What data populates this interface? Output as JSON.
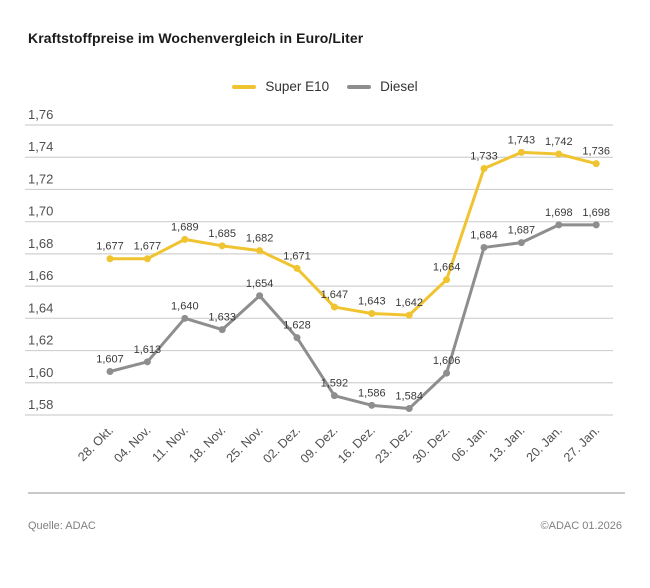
{
  "page": {
    "title": "Kraftstoffpreise im Wochenvergleich in Euro/Liter"
  },
  "chart_data": {
    "type": "line",
    "title": "Kraftstoffpreise im Wochenvergleich in Euro/Liter",
    "unit": "Euro/Liter",
    "categories": [
      "28. Okt.",
      "04. Nov.",
      "11. Nov.",
      "18. Nov.",
      "25. Nov.",
      "02. Dez.",
      "09. Dez.",
      "16. Dez.",
      "23. Dez.",
      "30. Dez.",
      "06. Jan.",
      "13. Jan.",
      "20. Jan.",
      "27. Jan."
    ],
    "series": [
      {
        "name": "Super E10",
        "color": "#F0C430",
        "values": [
          1.677,
          1.677,
          1.689,
          1.685,
          1.682,
          1.671,
          1.647,
          1.643,
          1.642,
          1.664,
          1.733,
          1.743,
          1.742,
          1.736
        ]
      },
      {
        "name": "Diesel",
        "color": "#8E8E8E",
        "values": [
          1.607,
          1.613,
          1.64,
          1.633,
          1.654,
          1.628,
          1.592,
          1.586,
          1.584,
          1.606,
          1.684,
          1.687,
          1.698,
          1.698
        ]
      }
    ],
    "ylim": [
      1.58,
      1.76
    ],
    "ytick_step": 0.02,
    "grid": true,
    "legend_position": "top-center",
    "decimal_separator": ",",
    "grid_color": "#d0d0d0",
    "point_label_color": "#3a3a3a",
    "axis_text_color": "#4f4f4f"
  },
  "footer": {
    "source": "Quelle: ADAC",
    "copyright": "©ADAC 01.2026"
  }
}
